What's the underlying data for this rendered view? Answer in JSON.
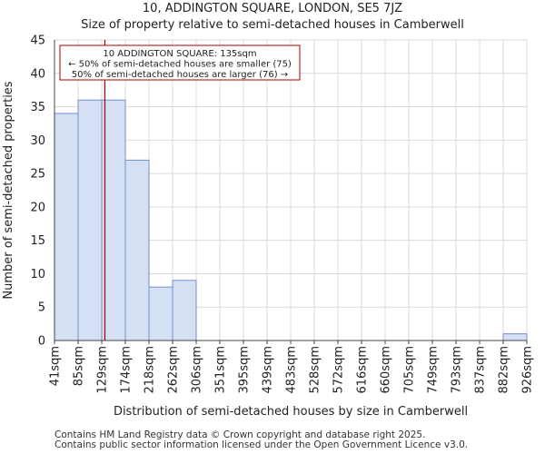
{
  "title": "10, ADDINGTON SQUARE, LONDON, SE5 7JZ",
  "subtitle": "Size of property relative to semi-detached houses in Camberwell",
  "footer": {
    "line1": "Contains HM Land Registry data © Crown copyright and database right 2025.",
    "line2": "Contains public sector information licensed under the Open Government Licence v3.0."
  },
  "colors": {
    "bar_fill": "#d6e0f5",
    "bar_stroke": "#7090c8",
    "marker": "#aa0000",
    "grid": "#d9d9d9"
  },
  "chart_data": {
    "type": "bar",
    "xlabel": "Distribution of semi-detached houses by size in Camberwell",
    "ylabel": "Number of semi-detached properties",
    "ylim": [
      0,
      45
    ],
    "yticks": [
      0,
      5,
      10,
      15,
      20,
      25,
      30,
      35,
      40,
      45
    ],
    "bin_edges_sqm": [
      41,
      85,
      129,
      174,
      218,
      262,
      306,
      351,
      395,
      439,
      483,
      528,
      572,
      616,
      660,
      705,
      749,
      793,
      837,
      882,
      926
    ],
    "tick_labels": [
      "41sqm",
      "85sqm",
      "129sqm",
      "174sqm",
      "218sqm",
      "262sqm",
      "306sqm",
      "351sqm",
      "395sqm",
      "439sqm",
      "483sqm",
      "528sqm",
      "572sqm",
      "616sqm",
      "660sqm",
      "705sqm",
      "749sqm",
      "793sqm",
      "837sqm",
      "882sqm",
      "926sqm"
    ],
    "values": [
      34,
      36,
      36,
      27,
      8,
      9,
      0,
      0,
      0,
      0,
      0,
      0,
      0,
      0,
      0,
      0,
      0,
      0,
      0,
      1
    ],
    "grid": true,
    "marker": {
      "x_sqm": 135,
      "annotation": [
        "10 ADDINGTON SQUARE: 135sqm",
        "← 50% of semi-detached houses are smaller (75)",
        "50% of semi-detached houses are larger (76) →"
      ]
    }
  }
}
